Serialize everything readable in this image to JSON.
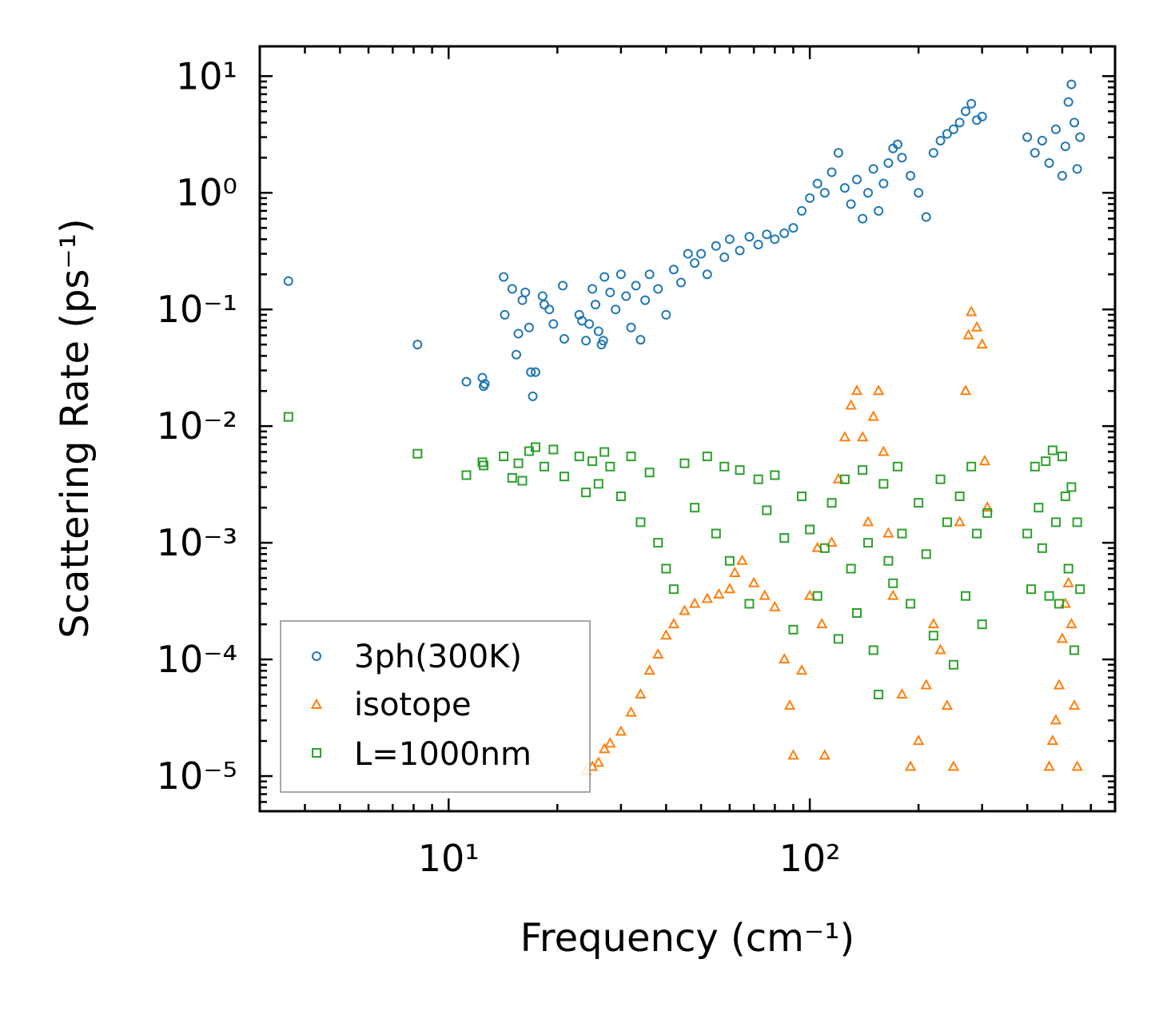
{
  "chart_data": {
    "type": "scatter",
    "title": "",
    "xlabel": "Frequency (cm⁻¹)",
    "ylabel": "Scattering Rate (ps⁻¹)",
    "xscale": "log",
    "yscale": "log",
    "xlim": [
      3,
      700
    ],
    "ylim": [
      5e-06,
      18
    ],
    "x_ticks": [
      {
        "value": 10,
        "label": "10¹"
      },
      {
        "value": 100,
        "label": "10²"
      }
    ],
    "y_ticks": [
      {
        "value": 10,
        "label": "10¹"
      },
      {
        "value": 1,
        "label": "10⁰"
      },
      {
        "value": 0.1,
        "label": "10⁻¹"
      },
      {
        "value": 0.01,
        "label": "10⁻²"
      },
      {
        "value": 0.001,
        "label": "10⁻³"
      },
      {
        "value": 0.0001,
        "label": "10⁻⁴"
      },
      {
        "value": 1e-05,
        "label": "10⁻⁵"
      }
    ],
    "legend_position": "lower-left",
    "series": [
      {
        "name": "3ph(300K)",
        "marker": "circle",
        "color": "#1f77b4",
        "points": [
          [
            3.6,
            0.175
          ],
          [
            8.2,
            0.05
          ],
          [
            11.2,
            0.024
          ],
          [
            12.4,
            0.026
          ],
          [
            12.5,
            0.022
          ],
          [
            12.6,
            0.023
          ],
          [
            14.2,
            0.19
          ],
          [
            14.3,
            0.09
          ],
          [
            15.0,
            0.15
          ],
          [
            15.4,
            0.041
          ],
          [
            15.6,
            0.062
          ],
          [
            16.0,
            0.12
          ],
          [
            16.3,
            0.14
          ],
          [
            16.7,
            0.07
          ],
          [
            17.1,
            0.018
          ],
          [
            17.4,
            0.029
          ],
          [
            16.9,
            0.029
          ],
          [
            18.2,
            0.13
          ],
          [
            18.4,
            0.11
          ],
          [
            19.0,
            0.1
          ],
          [
            19.5,
            0.075
          ],
          [
            20.7,
            0.16
          ],
          [
            20.9,
            0.056
          ],
          [
            23.0,
            0.09
          ],
          [
            23.4,
            0.08
          ],
          [
            24.0,
            0.054
          ],
          [
            24.5,
            0.075
          ],
          [
            25.0,
            0.15
          ],
          [
            25.5,
            0.11
          ],
          [
            26.0,
            0.065
          ],
          [
            26.5,
            0.05
          ],
          [
            26.8,
            0.054
          ],
          [
            27.0,
            0.19
          ],
          [
            28.0,
            0.14
          ],
          [
            29.0,
            0.1
          ],
          [
            30.0,
            0.2
          ],
          [
            31.0,
            0.13
          ],
          [
            32.0,
            0.07
          ],
          [
            33.0,
            0.16
          ],
          [
            34.0,
            0.055
          ],
          [
            35.0,
            0.12
          ],
          [
            36.0,
            0.2
          ],
          [
            38.0,
            0.15
          ],
          [
            40.0,
            0.09
          ],
          [
            42.0,
            0.22
          ],
          [
            44.0,
            0.17
          ],
          [
            46.0,
            0.3
          ],
          [
            48.0,
            0.25
          ],
          [
            50.0,
            0.3
          ],
          [
            52.0,
            0.2
          ],
          [
            55.0,
            0.35
          ],
          [
            58.0,
            0.28
          ],
          [
            60.0,
            0.4
          ],
          [
            64.0,
            0.32
          ],
          [
            68.0,
            0.42
          ],
          [
            72.0,
            0.36
          ],
          [
            76.0,
            0.44
          ],
          [
            80.0,
            0.4
          ],
          [
            85.0,
            0.45
          ],
          [
            90.0,
            0.5
          ],
          [
            95.0,
            0.7
          ],
          [
            100.0,
            0.9
          ],
          [
            105.0,
            1.2
          ],
          [
            110.0,
            1.0
          ],
          [
            115.0,
            1.5
          ],
          [
            120.0,
            2.2
          ],
          [
            125.0,
            1.1
          ],
          [
            130.0,
            0.8
          ],
          [
            135.0,
            1.3
          ],
          [
            140.0,
            0.6
          ],
          [
            145.0,
            1.0
          ],
          [
            150.0,
            1.6
          ],
          [
            155.0,
            0.7
          ],
          [
            160.0,
            1.2
          ],
          [
            165.0,
            1.8
          ],
          [
            170.0,
            2.4
          ],
          [
            175.0,
            2.6
          ],
          [
            180.0,
            2.0
          ],
          [
            190.0,
            1.4
          ],
          [
            200.0,
            1.0
          ],
          [
            210.0,
            0.62
          ],
          [
            220.0,
            2.2
          ],
          [
            230.0,
            2.8
          ],
          [
            240.0,
            3.2
          ],
          [
            250.0,
            3.5
          ],
          [
            260.0,
            4.0
          ],
          [
            270.0,
            5.0
          ],
          [
            280.0,
            5.8
          ],
          [
            290.0,
            4.2
          ],
          [
            300.0,
            4.5
          ],
          [
            400.0,
            3.0
          ],
          [
            420.0,
            2.2
          ],
          [
            440.0,
            2.8
          ],
          [
            460.0,
            1.8
          ],
          [
            480.0,
            3.5
          ],
          [
            500.0,
            1.4
          ],
          [
            510.0,
            2.5
          ],
          [
            520.0,
            6.0
          ],
          [
            530.0,
            8.5
          ],
          [
            540.0,
            4.0
          ],
          [
            550.0,
            1.6
          ],
          [
            560.0,
            3.0
          ]
        ]
      },
      {
        "name": "isotope",
        "marker": "triangle",
        "color": "#ff7f0e",
        "points": [
          [
            24.0,
            1.1e-05
          ],
          [
            25.0,
            1.2e-05
          ],
          [
            26.0,
            1.3e-05
          ],
          [
            27.0,
            1.7e-05
          ],
          [
            28.0,
            1.9e-05
          ],
          [
            30.0,
            2.4e-05
          ],
          [
            32.0,
            3.5e-05
          ],
          [
            34.0,
            5e-05
          ],
          [
            36.0,
            8e-05
          ],
          [
            38.0,
            0.00011
          ],
          [
            40.0,
            0.00016
          ],
          [
            42.0,
            0.0002
          ],
          [
            45.0,
            0.00026
          ],
          [
            48.0,
            0.0003
          ],
          [
            52.0,
            0.00033
          ],
          [
            56.0,
            0.00036
          ],
          [
            60.0,
            0.0004
          ],
          [
            62.0,
            0.00055
          ],
          [
            65.0,
            0.0007
          ],
          [
            70.0,
            0.00045
          ],
          [
            75.0,
            0.00035
          ],
          [
            80.0,
            0.00028
          ],
          [
            85.0,
            0.0001
          ],
          [
            88.0,
            4e-05
          ],
          [
            90.0,
            1.5e-05
          ],
          [
            95.0,
            8e-05
          ],
          [
            100.0,
            0.00035
          ],
          [
            105.0,
            0.0009
          ],
          [
            108.0,
            0.0002
          ],
          [
            110.0,
            1.5e-05
          ],
          [
            115.0,
            0.001
          ],
          [
            120.0,
            0.0035
          ],
          [
            125.0,
            0.008
          ],
          [
            130.0,
            0.015
          ],
          [
            135.0,
            0.02
          ],
          [
            140.0,
            0.008
          ],
          [
            145.0,
            0.0015
          ],
          [
            150.0,
            0.012
          ],
          [
            155.0,
            0.02
          ],
          [
            160.0,
            0.006
          ],
          [
            165.0,
            0.0012
          ],
          [
            170.0,
            0.00035
          ],
          [
            180.0,
            5e-05
          ],
          [
            190.0,
            1.2e-05
          ],
          [
            200.0,
            2e-05
          ],
          [
            210.0,
            6e-05
          ],
          [
            220.0,
            0.0002
          ],
          [
            230.0,
            0.00012
          ],
          [
            240.0,
            4e-05
          ],
          [
            250.0,
            1.2e-05
          ],
          [
            260.0,
            0.0015
          ],
          [
            270.0,
            0.02
          ],
          [
            275.0,
            0.06
          ],
          [
            280.0,
            0.095
          ],
          [
            290.0,
            0.07
          ],
          [
            300.0,
            0.05
          ],
          [
            305.0,
            0.005
          ],
          [
            310.0,
            0.002
          ],
          [
            460.0,
            1.2e-05
          ],
          [
            470.0,
            2e-05
          ],
          [
            480.0,
            3e-05
          ],
          [
            490.0,
            6e-05
          ],
          [
            500.0,
            0.00015
          ],
          [
            510.0,
            0.0003
          ],
          [
            520.0,
            0.00045
          ],
          [
            530.0,
            0.0002
          ],
          [
            540.0,
            4e-05
          ],
          [
            550.0,
            1.2e-05
          ]
        ]
      },
      {
        "name": "L=1000nm",
        "marker": "square",
        "color": "#2ca02c",
        "points": [
          [
            3.6,
            0.012
          ],
          [
            8.2,
            0.0058
          ],
          [
            11.2,
            0.0038
          ],
          [
            12.4,
            0.0049
          ],
          [
            12.5,
            0.0046
          ],
          [
            14.2,
            0.0055
          ],
          [
            15.0,
            0.0036
          ],
          [
            15.6,
            0.0048
          ],
          [
            16.0,
            0.0034
          ],
          [
            16.7,
            0.0061
          ],
          [
            17.4,
            0.0066
          ],
          [
            18.4,
            0.0045
          ],
          [
            19.5,
            0.0063
          ],
          [
            20.9,
            0.0037
          ],
          [
            23.0,
            0.0055
          ],
          [
            24.0,
            0.0027
          ],
          [
            25.0,
            0.005
          ],
          [
            26.0,
            0.0032
          ],
          [
            27.0,
            0.006
          ],
          [
            28.0,
            0.0045
          ],
          [
            30.0,
            0.0025
          ],
          [
            32.0,
            0.0055
          ],
          [
            34.0,
            0.0015
          ],
          [
            36.0,
            0.004
          ],
          [
            38.0,
            0.001
          ],
          [
            40.0,
            0.0006
          ],
          [
            42.0,
            0.0004
          ],
          [
            45.0,
            0.0048
          ],
          [
            48.0,
            0.002
          ],
          [
            52.0,
            0.0055
          ],
          [
            55.0,
            0.0012
          ],
          [
            58.0,
            0.0045
          ],
          [
            60.0,
            0.0007
          ],
          [
            64.0,
            0.0042
          ],
          [
            68.0,
            0.0003
          ],
          [
            72.0,
            0.0035
          ],
          [
            76.0,
            0.0019
          ],
          [
            80.0,
            0.0038
          ],
          [
            85.0,
            0.0011
          ],
          [
            90.0,
            0.00018
          ],
          [
            95.0,
            0.0025
          ],
          [
            100.0,
            0.0013
          ],
          [
            105.0,
            0.00035
          ],
          [
            110.0,
            0.0009
          ],
          [
            115.0,
            0.0022
          ],
          [
            120.0,
            0.00015
          ],
          [
            125.0,
            0.0035
          ],
          [
            130.0,
            0.0006
          ],
          [
            135.0,
            0.00025
          ],
          [
            140.0,
            0.0042
          ],
          [
            145.0,
            0.001
          ],
          [
            150.0,
            0.00012
          ],
          [
            155.0,
            5e-05
          ],
          [
            160.0,
            0.0032
          ],
          [
            165.0,
            0.0007
          ],
          [
            170.0,
            0.00045
          ],
          [
            175.0,
            0.0045
          ],
          [
            180.0,
            0.0012
          ],
          [
            190.0,
            0.0003
          ],
          [
            200.0,
            0.0022
          ],
          [
            210.0,
            0.0008
          ],
          [
            220.0,
            0.00016
          ],
          [
            230.0,
            0.0035
          ],
          [
            240.0,
            0.0015
          ],
          [
            250.0,
            9e-05
          ],
          [
            260.0,
            0.0025
          ],
          [
            270.0,
            0.00035
          ],
          [
            280.0,
            0.0045
          ],
          [
            290.0,
            0.0012
          ],
          [
            300.0,
            0.0002
          ],
          [
            310.0,
            0.0018
          ],
          [
            400.0,
            0.0012
          ],
          [
            410.0,
            0.0004
          ],
          [
            420.0,
            0.0045
          ],
          [
            430.0,
            0.002
          ],
          [
            440.0,
            0.0009
          ],
          [
            450.0,
            0.005
          ],
          [
            460.0,
            0.00035
          ],
          [
            470.0,
            0.0062
          ],
          [
            480.0,
            0.0015
          ],
          [
            490.0,
            0.0003
          ],
          [
            500.0,
            0.0055
          ],
          [
            510.0,
            0.0025
          ],
          [
            520.0,
            0.0006
          ],
          [
            530.0,
            0.003
          ],
          [
            540.0,
            0.00012
          ],
          [
            550.0,
            0.0015
          ],
          [
            560.0,
            0.0004
          ]
        ]
      }
    ]
  }
}
